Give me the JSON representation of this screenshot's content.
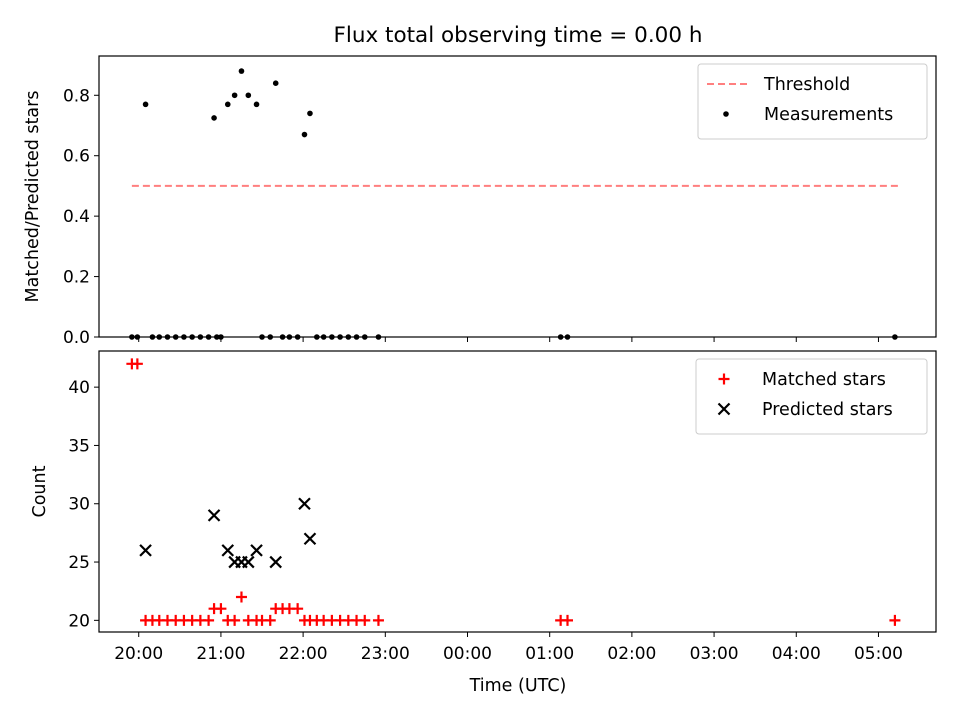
{
  "figure": {
    "title": "Flux total observing time = 0.00 h",
    "xlabel": "Time (UTC)"
  },
  "chart_data": [
    {
      "type": "scatter",
      "ylabel": "Matched/Predicted stars",
      "xlim": [
        "19:31",
        "05:42"
      ],
      "ylim": [
        0,
        0.93
      ],
      "yticks": [
        "0.0",
        "0.2",
        "0.4",
        "0.6",
        "0.8"
      ],
      "ytick_values": [
        0,
        0.2,
        0.4,
        0.6,
        0.8
      ],
      "legend_position": "top-right",
      "threshold": {
        "name": "Threshold",
        "value": 0.5,
        "x_range": [
          "19:55",
          "05:15"
        ],
        "color": "#ff7f7f",
        "style": "dashed"
      },
      "series": [
        {
          "name": "Measurements",
          "marker": "dot",
          "color": "#000000",
          "points": [
            [
              "19:55",
              0
            ],
            [
              "19:59",
              0
            ],
            [
              "20:05",
              0.77
            ],
            [
              "20:10",
              0
            ],
            [
              "20:15",
              0
            ],
            [
              "20:21",
              0
            ],
            [
              "20:27",
              0
            ],
            [
              "20:33",
              0
            ],
            [
              "20:39",
              0
            ],
            [
              "20:45",
              0
            ],
            [
              "20:51",
              0
            ],
            [
              "20:57",
              0
            ],
            [
              "20:55",
              0.725
            ],
            [
              "21:00",
              0
            ],
            [
              "21:05",
              0.77
            ],
            [
              "21:10",
              0.8
            ],
            [
              "21:15",
              0.88
            ],
            [
              "21:20",
              0.8
            ],
            [
              "21:26",
              0.77
            ],
            [
              "21:30",
              0
            ],
            [
              "21:36",
              0
            ],
            [
              "21:40",
              0.84
            ],
            [
              "21:45",
              0
            ],
            [
              "21:50",
              0
            ],
            [
              "21:56",
              0
            ],
            [
              "22:01",
              0.67
            ],
            [
              "22:05",
              0.74
            ],
            [
              "22:10",
              0
            ],
            [
              "22:15",
              0
            ],
            [
              "22:21",
              0
            ],
            [
              "22:27",
              0
            ],
            [
              "22:33",
              0
            ],
            [
              "22:39",
              0
            ],
            [
              "22:45",
              0
            ],
            [
              "22:55",
              0
            ],
            [
              "01:08",
              0
            ],
            [
              "01:13",
              0
            ],
            [
              "05:12",
              0
            ]
          ]
        }
      ]
    },
    {
      "type": "scatter",
      "ylabel": "Count",
      "xlim": [
        "19:31",
        "05:42"
      ],
      "ylim": [
        19,
        43.1
      ],
      "yticks": [
        "20",
        "25",
        "30",
        "35",
        "40"
      ],
      "ytick_values": [
        20,
        25,
        30,
        35,
        40
      ],
      "legend_position": "top-right",
      "xticks": [
        "20:00",
        "21:00",
        "22:00",
        "23:00",
        "00:00",
        "01:00",
        "02:00",
        "03:00",
        "04:00",
        "05:00"
      ],
      "series": [
        {
          "name": "Matched stars",
          "marker": "plus",
          "color": "#ff0000",
          "points": [
            [
              "19:55",
              42
            ],
            [
              "19:59",
              42
            ],
            [
              "20:05",
              20
            ],
            [
              "20:10",
              20
            ],
            [
              "20:15",
              20
            ],
            [
              "20:21",
              20
            ],
            [
              "20:27",
              20
            ],
            [
              "20:33",
              20
            ],
            [
              "20:39",
              20
            ],
            [
              "20:45",
              20
            ],
            [
              "20:51",
              20
            ],
            [
              "20:55",
              21
            ],
            [
              "21:00",
              21
            ],
            [
              "21:05",
              20
            ],
            [
              "21:10",
              20
            ],
            [
              "21:15",
              22
            ],
            [
              "21:20",
              20
            ],
            [
              "21:26",
              20
            ],
            [
              "21:30",
              20
            ],
            [
              "21:36",
              20
            ],
            [
              "21:40",
              21
            ],
            [
              "21:45",
              21
            ],
            [
              "21:50",
              21
            ],
            [
              "21:56",
              21
            ],
            [
              "22:01",
              20
            ],
            [
              "22:05",
              20
            ],
            [
              "22:10",
              20
            ],
            [
              "22:15",
              20
            ],
            [
              "22:21",
              20
            ],
            [
              "22:27",
              20
            ],
            [
              "22:33",
              20
            ],
            [
              "22:39",
              20
            ],
            [
              "22:45",
              20
            ],
            [
              "22:55",
              20
            ],
            [
              "01:08",
              20
            ],
            [
              "01:13",
              20
            ],
            [
              "05:12",
              20
            ]
          ]
        },
        {
          "name": "Predicted stars",
          "marker": "x",
          "color": "#000000",
          "points": [
            [
              "20:05",
              26
            ],
            [
              "20:55",
              29
            ],
            [
              "21:05",
              26
            ],
            [
              "21:10",
              25
            ],
            [
              "21:15",
              25
            ],
            [
              "21:20",
              25
            ],
            [
              "21:26",
              26
            ],
            [
              "21:40",
              25
            ],
            [
              "22:01",
              30
            ],
            [
              "22:05",
              27
            ]
          ]
        }
      ]
    }
  ]
}
